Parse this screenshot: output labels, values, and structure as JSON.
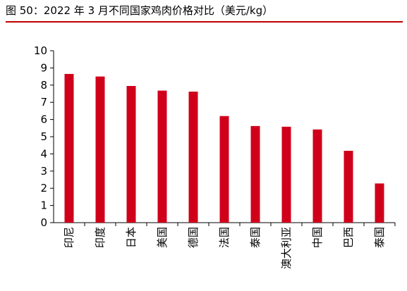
{
  "title": "图 50：2022 年 3 月不同国家鸡肉价格对比（美元/kg）",
  "colors": {
    "bar": "#d0001b",
    "title_rule": "#c00000",
    "axis": "#000000"
  },
  "chart_data": {
    "type": "bar",
    "title": "图 50：2022 年 3 月不同国家鸡肉价格对比（美元/kg）",
    "xlabel": "",
    "ylabel": "",
    "ylim": [
      0,
      10
    ],
    "yticks": [
      0,
      1,
      2,
      3,
      4,
      5,
      6,
      7,
      8,
      9,
      10
    ],
    "grid": false,
    "categories": [
      "印尼",
      "印度",
      "日本",
      "美国",
      "德国",
      "法国",
      "泰国",
      "澳大利亚",
      "中国",
      "巴西",
      "泰国"
    ],
    "values": [
      8.65,
      8.5,
      7.95,
      7.68,
      7.62,
      6.2,
      5.62,
      5.58,
      5.42,
      4.18,
      2.28
    ]
  }
}
